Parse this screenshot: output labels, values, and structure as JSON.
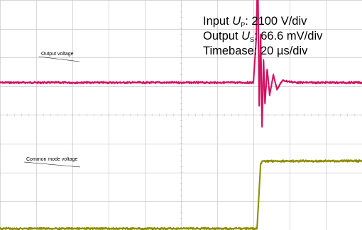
{
  "chart_data": {
    "type": "line",
    "title": "",
    "grid": true,
    "divisions": {
      "x": 10,
      "y": 8
    },
    "info": {
      "line1_prefix": "Input ",
      "line1_sym": "U",
      "line1_sub": "P",
      "line1_value": ": 2100 V/div",
      "line2_prefix": "Output ",
      "line2_sym": "U",
      "line2_sub": "S",
      "line2_value": ": 66.6 mV/div",
      "line3": "Timebase: 20 µs/div"
    },
    "annotations": {
      "output": "Output voltage",
      "common": "Common mode voltage"
    },
    "series": [
      {
        "name": "Output voltage",
        "color": "#d0105f",
        "unit_x": "div",
        "unit_y": "div",
        "baseline": 5.13,
        "points": [
          [
            0.0,
            5.13
          ],
          [
            7.0,
            5.13
          ],
          [
            7.08,
            6.7
          ],
          [
            7.12,
            9.1
          ],
          [
            7.16,
            4.3
          ],
          [
            7.2,
            6.8
          ],
          [
            7.24,
            3.6
          ],
          [
            7.28,
            5.9
          ],
          [
            7.32,
            4.4
          ],
          [
            7.38,
            5.6
          ],
          [
            7.45,
            4.7
          ],
          [
            7.55,
            5.4
          ],
          [
            7.65,
            4.9
          ],
          [
            7.8,
            5.2
          ],
          [
            8.2,
            5.13
          ],
          [
            9.5,
            5.13
          ],
          [
            11.5,
            5.13
          ],
          [
            12.5,
            5.0
          ],
          [
            13.5,
            4.88
          ],
          [
            14.5,
            4.75
          ],
          [
            15.4,
            4.68
          ],
          [
            16.2,
            4.82
          ],
          [
            17.0,
            5.02
          ],
          [
            17.8,
            5.1
          ],
          [
            19.0,
            5.12
          ],
          [
            20.0,
            5.13
          ],
          [
            33.4,
            5.13
          ]
        ]
      },
      {
        "name": "Common mode voltage",
        "color": "#8d8d00",
        "unit_x": "div",
        "unit_y": "div",
        "baseline": 0.05,
        "points": [
          [
            0.0,
            0.05
          ],
          [
            7.1,
            0.05
          ],
          [
            7.2,
            2.3
          ],
          [
            7.25,
            2.4
          ],
          [
            33.4,
            2.4
          ]
        ]
      }
    ]
  }
}
